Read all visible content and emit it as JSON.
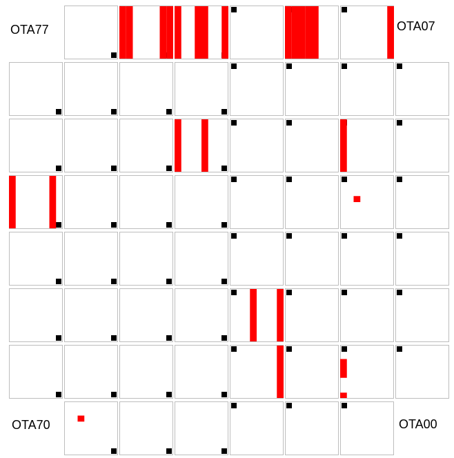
{
  "labels": {
    "top_left": "OTA77",
    "top_right": "OTA07",
    "bottom_left": "OTA70",
    "bottom_right": "OTA00"
  },
  "colors": {
    "cell_border": "#bdbdbd",
    "marker": "#000000",
    "flag": "#ff0000",
    "background": "#ffffff"
  },
  "grid": {
    "columns": 8,
    "rows": 8,
    "missing_cells": [
      [
        0,
        0
      ],
      [
        0,
        7
      ],
      [
        7,
        0
      ],
      [
        7,
        7
      ]
    ],
    "cell_subdivisions": 8
  },
  "flagged_columns": [
    {
      "cell": [
        0,
        2
      ],
      "cols": [
        0,
        1,
        6,
        7
      ],
      "rows": [
        0,
        7
      ]
    },
    {
      "cell": [
        0,
        3
      ],
      "cols": [
        0,
        3,
        4,
        7
      ],
      "rows": [
        0,
        7
      ]
    },
    {
      "cell": [
        0,
        5
      ],
      "cols": [
        0,
        1,
        2,
        3,
        4
      ],
      "rows": [
        0,
        7
      ]
    },
    {
      "cell": [
        0,
        6
      ],
      "cols": [
        7
      ],
      "rows": [
        0,
        7
      ]
    },
    {
      "cell": [
        2,
        3
      ],
      "cols": [
        0,
        4
      ],
      "rows": [
        0,
        7
      ]
    },
    {
      "cell": [
        2,
        6
      ],
      "cols": [
        0
      ],
      "rows": [
        0,
        7
      ]
    },
    {
      "cell": [
        3,
        0
      ],
      "cols": [
        0,
        6
      ],
      "rows": [
        0,
        7
      ]
    },
    {
      "cell": [
        5,
        4
      ],
      "cols": [
        3,
        7
      ],
      "rows": [
        0,
        7
      ]
    },
    {
      "cell": [
        6,
        4
      ],
      "cols": [
        7
      ],
      "rows": [
        0,
        7
      ]
    },
    {
      "cell": [
        6,
        6
      ],
      "cols": [
        0
      ],
      "rows": [
        2,
        4
      ]
    },
    {
      "cell": [
        6,
        6
      ],
      "cols": [
        0
      ],
      "rows": [
        7,
        7
      ]
    }
  ],
  "flagged_pixels": [
    {
      "cell": [
        3,
        6
      ],
      "col": 2,
      "row": 3
    },
    {
      "cell": [
        7,
        1
      ],
      "col": 2,
      "row": 2
    }
  ]
}
